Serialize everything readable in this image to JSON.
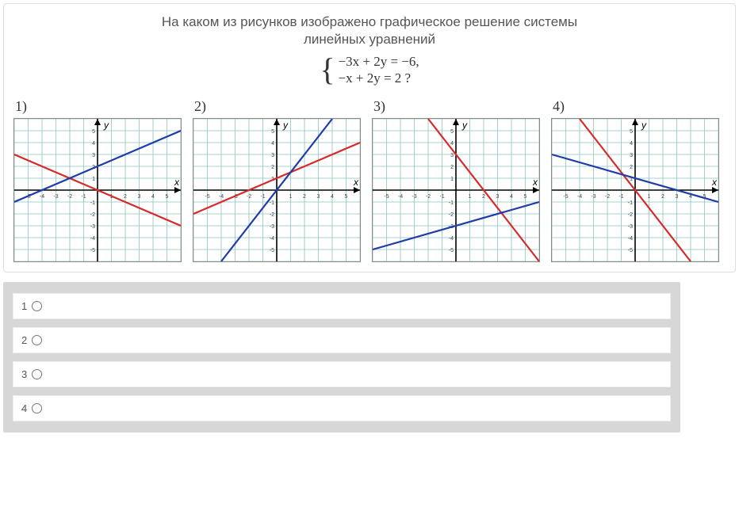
{
  "question": {
    "title_line1": "На каком из рисунков изображено графическое решение системы",
    "title_line2": "линейных уравнений",
    "eq1": "−3x + 2y = −6,",
    "eq2": "−x + 2y = 2 ?"
  },
  "graph_labels": {
    "1": "1)",
    "2": "2)",
    "3": "3)",
    "4": "4)",
    "x": "x",
    "y": "y"
  },
  "graphs": {
    "common": {
      "grid_color": "#8fc2c2",
      "axis_color": "#000000",
      "bg": "#ffffff",
      "xmin": -6,
      "xmax": 6,
      "ymin": -6,
      "ymax": 6,
      "tick_step": 1,
      "colors": {
        "red": "#d62b2b",
        "blue": "#1f3da8"
      },
      "line_width": 2.2
    },
    "g1": {
      "lines": [
        {
          "color": "red",
          "p1": [
            -6,
            3
          ],
          "p2": [
            6,
            -3
          ]
        },
        {
          "color": "blue",
          "p1": [
            -6,
            -1
          ],
          "p2": [
            6,
            5
          ]
        }
      ]
    },
    "g2": {
      "lines": [
        {
          "color": "red",
          "p1": [
            -6,
            -2
          ],
          "p2": [
            6,
            4
          ]
        },
        {
          "color": "blue",
          "p1": [
            -4,
            -6
          ],
          "p2": [
            4,
            6
          ]
        }
      ]
    },
    "g3": {
      "lines": [
        {
          "color": "red",
          "p1": [
            -2,
            6
          ],
          "p2": [
            6,
            -6
          ]
        },
        {
          "color": "blue",
          "p1": [
            -6,
            -5
          ],
          "p2": [
            6,
            -1
          ]
        }
      ]
    },
    "g4": {
      "lines": [
        {
          "color": "red",
          "p1": [
            -4,
            6
          ],
          "p2": [
            4,
            -6
          ]
        },
        {
          "color": "blue",
          "p1": [
            -6,
            3
          ],
          "p2": [
            6,
            -1
          ]
        }
      ]
    }
  },
  "answers": [
    {
      "label": "1",
      "value": "1"
    },
    {
      "label": "2",
      "value": "2"
    },
    {
      "label": "3",
      "value": "3"
    },
    {
      "label": "4",
      "value": "4"
    }
  ]
}
